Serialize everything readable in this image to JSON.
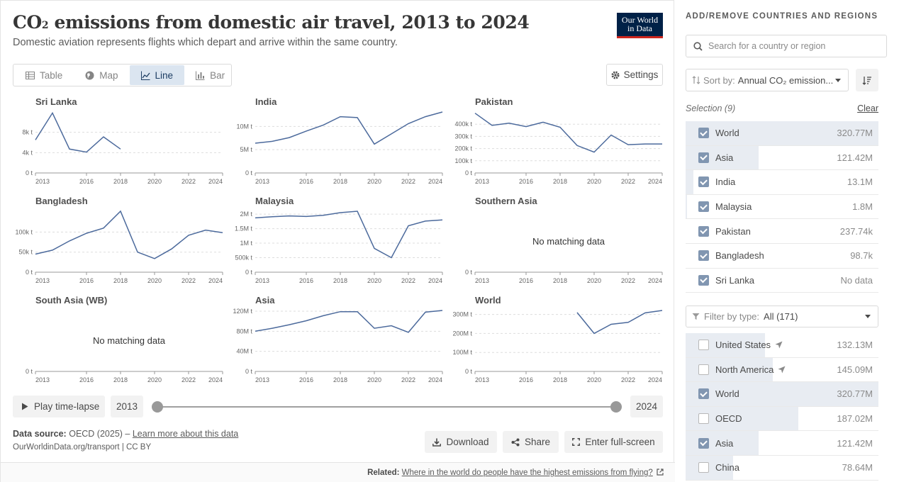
{
  "header": {
    "title_pre": "CO",
    "title_sub": "2",
    "title_post": " emissions from domestic air travel, 2013 to 2024",
    "subtitle": "Domestic aviation represents flights which depart and arrive within the same country.",
    "logo_line1": "Our World",
    "logo_line2": "in Data"
  },
  "tabs": [
    {
      "label": "Table",
      "icon": "table-icon"
    },
    {
      "label": "Map",
      "icon": "globe-icon"
    },
    {
      "label": "Line",
      "icon": "line-chart-icon",
      "active": true
    },
    {
      "label": "Bar",
      "icon": "bar-chart-icon"
    }
  ],
  "settings_label": "Settings",
  "no_data_text": "No matching data",
  "chart_data": [
    {
      "type": "line",
      "title": "Sri Lanka",
      "x": [
        2013,
        2014,
        2015,
        2016,
        2017,
        2018
      ],
      "y": [
        6500,
        11800,
        4700,
        4100,
        7100,
        4700
      ],
      "ylim": [
        0,
        12000
      ],
      "yticks": [
        0,
        4000,
        8000
      ],
      "ytick_labels": [
        "0 t",
        "4k t",
        "8k t"
      ],
      "xticks": [
        2013,
        2016,
        2018,
        2020,
        2022,
        2024
      ]
    },
    {
      "type": "line",
      "title": "India",
      "x": [
        2013,
        2014,
        2015,
        2016,
        2017,
        2018,
        2019,
        2020,
        2021,
        2022,
        2023,
        2024
      ],
      "y": [
        6400000.0,
        6800000.0,
        7600000.0,
        9000000.0,
        10300000.0,
        12100000.0,
        11900000.0,
        6200000.0,
        8400000.0,
        10600000.0,
        12100000.0,
        13100000.0
      ],
      "ylim": [
        0,
        13100000.0
      ],
      "yticks": [
        0,
        5000000.0,
        10000000.0
      ],
      "ytick_labels": [
        "0 t",
        "5M t",
        "10M t"
      ],
      "xticks": [
        2013,
        2016,
        2018,
        2020,
        2022,
        2024
      ]
    },
    {
      "type": "line",
      "title": "Pakistan",
      "x": [
        2013,
        2014,
        2015,
        2016,
        2017,
        2018,
        2019,
        2020,
        2021,
        2022,
        2023,
        2024
      ],
      "y": [
        490000,
        390000,
        408000,
        380000,
        416000,
        375000,
        225000,
        171000,
        311000,
        232000,
        238000,
        237740
      ],
      "ylim": [
        0,
        500000
      ],
      "yticks": [
        0,
        100000,
        200000,
        300000,
        400000
      ],
      "ytick_labels": [
        "0 t",
        "100k t",
        "200k t",
        "300k t",
        "400k t"
      ],
      "xticks": [
        2013,
        2016,
        2018,
        2020,
        2022,
        2024
      ]
    },
    {
      "type": "line",
      "title": "Bangladesh",
      "x": [
        2013,
        2014,
        2015,
        2016,
        2017,
        2018,
        2019,
        2020,
        2021,
        2022,
        2023,
        2024
      ],
      "y": [
        45000,
        55000,
        78000,
        97000,
        110000,
        152000,
        50000,
        34000,
        58000,
        92000,
        105000,
        98700
      ],
      "ylim": [
        0,
        152000
      ],
      "yticks": [
        0,
        50000,
        100000
      ],
      "ytick_labels": [
        "0 t",
        "50k t",
        "100k t"
      ],
      "xticks": [
        2013,
        2016,
        2018,
        2020,
        2022,
        2024
      ]
    },
    {
      "type": "line",
      "title": "Malaysia",
      "x": [
        2013,
        2014,
        2015,
        2016,
        2017,
        2018,
        2019,
        2020,
        2021,
        2022,
        2023,
        2024
      ],
      "y": [
        1870000.0,
        1910000.0,
        1940000.0,
        1920000.0,
        1960000.0,
        2050000.0,
        2100000.0,
        820000.0,
        500000.0,
        1600000.0,
        1760000.0,
        1800000.0
      ],
      "ylim": [
        0,
        2100000.0
      ],
      "yticks": [
        0,
        500000,
        1000000,
        1500000,
        2000000
      ],
      "ytick_labels": [
        "0 t",
        "500k t",
        "1M t",
        "1.5M t",
        "2M t"
      ],
      "xticks": [
        2013,
        2016,
        2018,
        2020,
        2022,
        2024
      ]
    },
    {
      "type": "line",
      "title": "Southern Asia",
      "x": [],
      "y": [],
      "ylim": [
        0,
        1
      ],
      "yticks": [
        0
      ],
      "ytick_labels": [
        "0 t"
      ],
      "xticks": [
        2013,
        2016,
        2018,
        2020,
        2022,
        2024
      ],
      "no_data": true
    },
    {
      "type": "line",
      "title": "South Asia (WB)",
      "x": [],
      "y": [],
      "ylim": [
        0,
        1
      ],
      "yticks": [
        0
      ],
      "ytick_labels": [
        "0 t"
      ],
      "xticks": [
        2013,
        2016,
        2018,
        2020,
        2022,
        2024
      ],
      "no_data": true
    },
    {
      "type": "line",
      "title": "Asia",
      "x": [
        2013,
        2014,
        2015,
        2016,
        2017,
        2018,
        2019,
        2020,
        2021,
        2022,
        2023,
        2024
      ],
      "y": [
        80000000.0,
        86000000.0,
        93000000.0,
        101000000.0,
        111000000.0,
        119000000.0,
        119000000.0,
        86000000.0,
        91000000.0,
        78000000.0,
        118000000.0,
        121420000.0
      ],
      "ylim": [
        0,
        121420000.0
      ],
      "yticks": [
        0,
        40000000.0,
        80000000.0,
        120000000.0
      ],
      "ytick_labels": [
        "0 t",
        "40M t",
        "80M t",
        "120M t"
      ],
      "xticks": [
        2013,
        2016,
        2018,
        2020,
        2022,
        2024
      ]
    },
    {
      "type": "line",
      "title": "World",
      "x": [
        2019,
        2020,
        2021,
        2022,
        2023,
        2024
      ],
      "y": [
        310000000.0,
        200000000.0,
        248000000.0,
        258000000.0,
        308000000.0,
        320770000.0
      ],
      "ylim": [
        0,
        320770000.0
      ],
      "yticks": [
        0,
        100000000.0,
        200000000.0,
        300000000.0
      ],
      "ytick_labels": [
        "0 t",
        "100M t",
        "200M t",
        "300M t"
      ],
      "xticks": [
        2013,
        2016,
        2018,
        2020,
        2022,
        2024
      ]
    }
  ],
  "timeline": {
    "play_label": "Play time-lapse",
    "start_year": "2013",
    "end_year": "2024"
  },
  "footer": {
    "source_label": "Data source:",
    "source_value": "OECD (2025) –",
    "learn_more": "Learn more about this data",
    "attribution": "OurWorldinData.org/transport | CC BY",
    "download": "Download",
    "share": "Share",
    "fullscreen": "Enter full-screen",
    "related_label": "Related:",
    "related_link": "Where in the world do people have the highest emissions from flying?"
  },
  "sidebar": {
    "heading": "ADD/REMOVE COUNTRIES AND REGIONS",
    "search_placeholder": "Search for a country or region",
    "sort_label": "Sort by:",
    "sort_value": "Annual CO₂ emission...",
    "selection_label": "Selection (9)",
    "clear_label": "Clear",
    "selected": [
      {
        "name": "World",
        "value": "320.77M",
        "checked": true,
        "share": 1.0
      },
      {
        "name": "Asia",
        "value": "121.42M",
        "checked": true,
        "share": 0.379
      },
      {
        "name": "India",
        "value": "13.1M",
        "checked": true,
        "share": 0.041
      },
      {
        "name": "Malaysia",
        "value": "1.8M",
        "checked": true,
        "share": 0.006
      },
      {
        "name": "Pakistan",
        "value": "237.74k",
        "checked": true,
        "share": 0
      },
      {
        "name": "Bangladesh",
        "value": "98.7k",
        "checked": true,
        "share": 0
      },
      {
        "name": "Sri Lanka",
        "value": "No data",
        "checked": true,
        "share": 0
      }
    ],
    "filter_label": "Filter by type:",
    "filter_value": "All (171)",
    "all": [
      {
        "name": "United States",
        "value": "132.13M",
        "checked": false,
        "share": 0.412,
        "icon": "location-arrow-icon"
      },
      {
        "name": "North America",
        "value": "145.09M",
        "checked": false,
        "share": 0.452,
        "icon": "location-arrow-icon"
      },
      {
        "name": "World",
        "value": "320.77M",
        "checked": true,
        "share": 1.0
      },
      {
        "name": "OECD",
        "value": "187.02M",
        "checked": false,
        "share": 0.583
      },
      {
        "name": "Asia",
        "value": "121.42M",
        "checked": true,
        "share": 0.379
      },
      {
        "name": "China",
        "value": "78.64M",
        "checked": false,
        "share": 0.245
      }
    ]
  },
  "colors": {
    "line": "#4c6a9c",
    "accent": "#8196b1",
    "logo_bg": "#002147",
    "logo_stripe": "#ce261e"
  }
}
